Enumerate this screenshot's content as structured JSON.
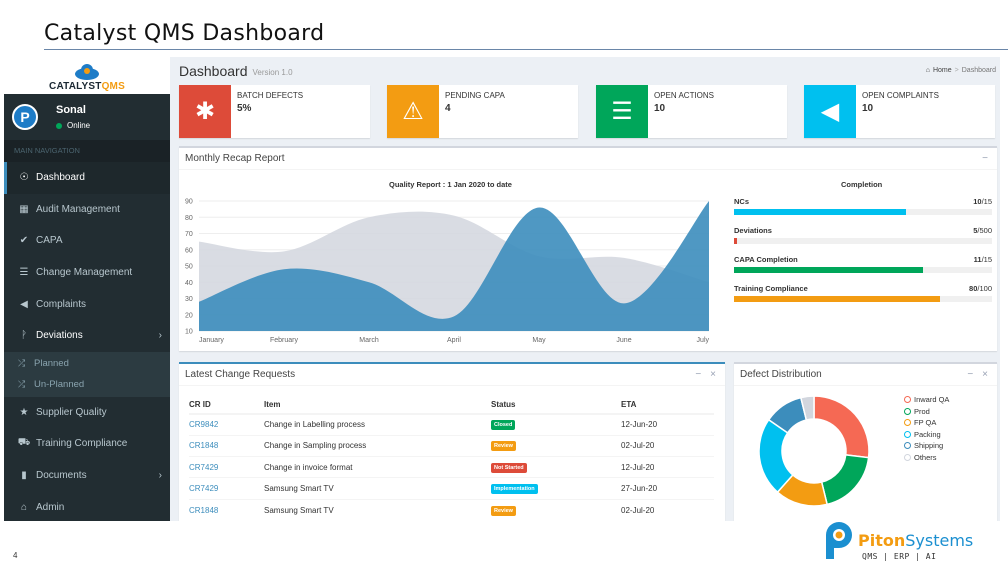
{
  "slide": {
    "title": "Catalyst QMS Dashboard",
    "page_number": "4"
  },
  "brand": {
    "logo_text_a": "CATALYST",
    "logo_text_b": "QMS",
    "company_a": "Piton",
    "company_b": "Systems",
    "tagline": "QMS | ERP | AI"
  },
  "sidebar": {
    "user": {
      "initial": "P",
      "name": "Sonal",
      "status": "Online"
    },
    "nav_header": "MAIN NAVIGATION",
    "items": [
      {
        "label": "Dashboard",
        "icon": "dashboard-icon",
        "glyph": "☉"
      },
      {
        "label": "Audit Management",
        "icon": "grid-icon",
        "glyph": "▦"
      },
      {
        "label": "CAPA",
        "icon": "check-icon",
        "glyph": "✔"
      },
      {
        "label": "Change Management",
        "icon": "list-icon",
        "glyph": "☰"
      },
      {
        "label": "Complaints",
        "icon": "megaphone-icon",
        "glyph": "◀"
      },
      {
        "label": "Deviations",
        "icon": "branch-icon",
        "glyph": "ᚹ",
        "chevron": "›"
      },
      {
        "label": "Supplier Quality",
        "icon": "star-icon",
        "glyph": "★"
      },
      {
        "label": "Training Compliance",
        "icon": "truck-icon",
        "glyph": "⛟"
      },
      {
        "label": "Documents",
        "icon": "file-icon",
        "glyph": "▮",
        "chevron": "›"
      },
      {
        "label": "Admin",
        "icon": "briefcase-icon",
        "glyph": "⌂"
      }
    ],
    "sub_items": [
      {
        "label": "Planned",
        "icon": "shuffle-icon",
        "glyph": "⤮"
      },
      {
        "label": "Un-Planned",
        "icon": "shuffle-icon",
        "glyph": "⤮"
      }
    ]
  },
  "header": {
    "title": "Dashboard",
    "version": "Version 1.0",
    "breadcrumb_home": "Home",
    "breadcrumb_sep": ">",
    "breadcrumb_current": "Dashboard"
  },
  "info_boxes": [
    {
      "label": "BATCH DEFECTS",
      "value": "5%",
      "color": "#dd4b39",
      "icon": "bug-icon",
      "glyph": "✱"
    },
    {
      "label": "PENDING CAPA",
      "value": "4",
      "color": "#f39c12",
      "icon": "warning-icon",
      "glyph": "⚠"
    },
    {
      "label": "OPEN ACTIONS",
      "value": "10",
      "color": "#00a65a",
      "icon": "server-icon",
      "glyph": "☰"
    },
    {
      "label": "OPEN COMPLAINTS",
      "value": "10",
      "color": "#00c0ef",
      "icon": "megaphone-icon",
      "glyph": "◀"
    }
  ],
  "recap": {
    "title": "Monthly Recap Report",
    "collapse": "−",
    "completion_title": "Completion",
    "completion": [
      {
        "label": "NCs",
        "done": 10,
        "total": 15,
        "count": "10",
        "suffix": "/15",
        "color": "#00c0ef"
      },
      {
        "label": "Deviations",
        "done": 5,
        "total": 500,
        "count": "5",
        "suffix": "/500",
        "color": "#dd4b39"
      },
      {
        "label": "CAPA Completion",
        "done": 11,
        "total": 15,
        "count": "11",
        "suffix": "/15",
        "color": "#00a65a"
      },
      {
        "label": "Training Compliance",
        "done": 80,
        "total": 100,
        "count": "80",
        "suffix": "/100",
        "color": "#f39c12"
      }
    ]
  },
  "chart_data": {
    "type": "area",
    "title": "Quality Report : 1 Jan 2020 to date",
    "categories": [
      "January",
      "February",
      "March",
      "April",
      "May",
      "June",
      "July"
    ],
    "ylim": [
      10,
      90
    ],
    "yticks": [
      10,
      20,
      30,
      40,
      50,
      60,
      70,
      80,
      90
    ],
    "series": [
      {
        "values": [
          65,
          59,
          80,
          81,
          56,
          55,
          40
        ],
        "color": "#d2d6de"
      },
      {
        "values": [
          28,
          48,
          40,
          19,
          86,
          27,
          90
        ],
        "color": "#3c8dbc"
      }
    ],
    "grid": true
  },
  "change_requests": {
    "title": "Latest Change Requests",
    "tools": [
      "−",
      "×"
    ],
    "headers": [
      "CR ID",
      "Item",
      "Status",
      "ETA"
    ],
    "rows": [
      {
        "id": "CR9842",
        "item": "Change in Labelling process",
        "status": "Closed",
        "status_color": "#00a65a",
        "eta": "12-Jun-20"
      },
      {
        "id": "CR1848",
        "item": "Change in Sampling process",
        "status": "Review",
        "status_color": "#f39c12",
        "eta": "02-Jul-20"
      },
      {
        "id": "CR7429",
        "item": "Change in invoice format",
        "status": "Not Started",
        "status_color": "#dd4b39",
        "eta": "12-Jul-20"
      },
      {
        "id": "CR7429",
        "item": "Samsung Smart TV",
        "status": "Implementation",
        "status_color": "#00c0ef",
        "eta": "27-Jun-20"
      },
      {
        "id": "CR1848",
        "item": "Samsung Smart TV",
        "status": "Review",
        "status_color": "#f39c12",
        "eta": "02-Jul-20"
      }
    ]
  },
  "defects": {
    "title": "Defect Distribution",
    "tools": [
      "−",
      "×"
    ],
    "chart_data": {
      "type": "pie",
      "labels": [
        "Inward QA",
        "Prod",
        "FP QA",
        "Packing",
        "Shipping",
        "Others"
      ],
      "values": [
        700,
        500,
        400,
        600,
        300,
        100
      ],
      "colors": [
        "#f56954",
        "#00a65a",
        "#f39c12",
        "#00c0ef",
        "#3c8dbc",
        "#d2d6de"
      ]
    }
  }
}
